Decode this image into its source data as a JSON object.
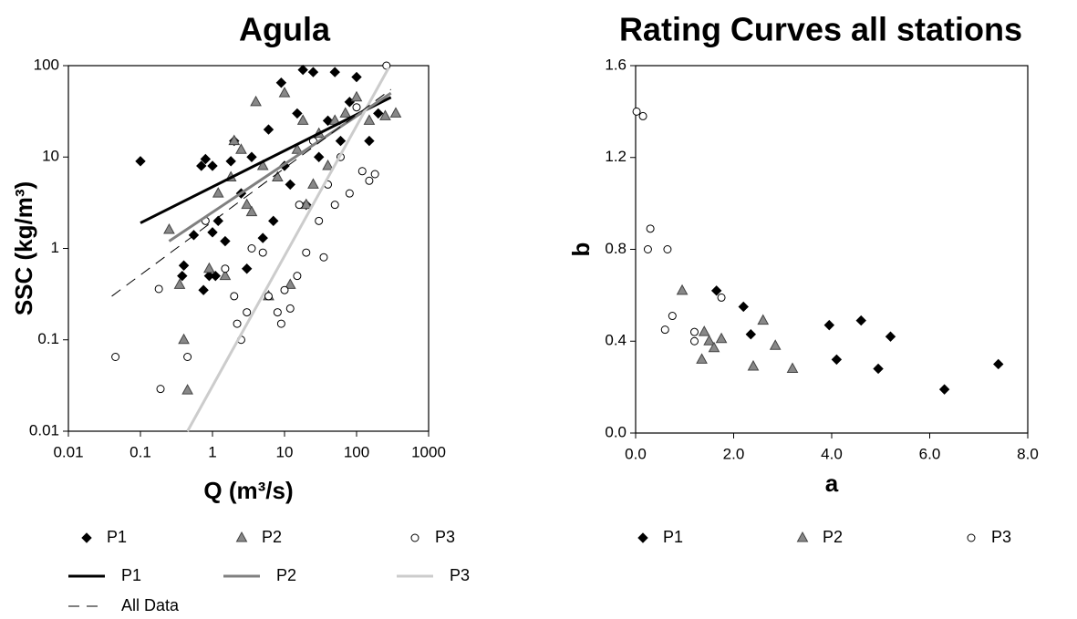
{
  "chart_data": [
    {
      "type": "scatter",
      "title": "Agula",
      "x_label": "Q (m³/s)",
      "y_label": "SSC (kg/m³)",
      "xscale": "log",
      "yscale": "log",
      "xlim": [
        0.01,
        1000
      ],
      "xticks": [
        0.01,
        0.1,
        1,
        10,
        100,
        1000
      ],
      "ylim": [
        0.01,
        100
      ],
      "yticks": [
        0.01,
        0.1,
        1,
        10,
        100
      ],
      "series": [
        {
          "name": "P1",
          "kind": "points",
          "marker": "diamond",
          "color": "#000000",
          "x": [
            0.1,
            0.38,
            0.4,
            0.55,
            0.7,
            0.75,
            0.8,
            0.9,
            1,
            1,
            1.1,
            1.2,
            1.5,
            1.8,
            2,
            2.5,
            3,
            3.5,
            5,
            6,
            7,
            9,
            10,
            12,
            15,
            18,
            20,
            25,
            30,
            40,
            50,
            60,
            80,
            100,
            150,
            200
          ],
          "values": [
            9,
            0.5,
            0.65,
            1.4,
            8,
            0.35,
            9.5,
            0.5,
            1.5,
            8,
            0.5,
            2,
            1.2,
            9,
            15,
            4,
            0.6,
            10,
            1.3,
            20,
            2,
            65,
            8,
            5,
            30,
            90,
            3,
            85,
            10,
            25,
            85,
            15,
            40,
            75,
            15,
            30
          ]
        },
        {
          "name": "P2",
          "kind": "points",
          "marker": "triangle",
          "color": "#888888",
          "x": [
            0.25,
            0.35,
            0.4,
            0.45,
            0.9,
            1.2,
            1.5,
            1.8,
            2,
            2.5,
            3,
            3.5,
            4,
            5,
            6,
            8,
            10,
            12,
            15,
            18,
            20,
            25,
            30,
            40,
            50,
            70,
            100,
            150,
            250,
            350
          ],
          "values": [
            1.6,
            0.4,
            0.1,
            0.028,
            0.6,
            4,
            0.5,
            6,
            15,
            12,
            3,
            2.5,
            40,
            8,
            0.3,
            6,
            50,
            0.4,
            12,
            25,
            3,
            5,
            18,
            8,
            25,
            30,
            45,
            25,
            28,
            30
          ]
        },
        {
          "name": "P3",
          "kind": "points",
          "marker": "circle",
          "color": "#ffffff",
          "x": [
            0.045,
            0.18,
            0.19,
            0.45,
            0.8,
            1.5,
            2,
            2.2,
            2.5,
            3,
            3.5,
            5,
            6,
            8,
            9,
            10,
            12,
            15,
            16,
            20,
            25,
            30,
            35,
            40,
            50,
            60,
            80,
            100,
            120,
            150,
            180,
            260
          ],
          "values": [
            0.065,
            0.36,
            0.029,
            0.065,
            2,
            0.6,
            0.3,
            0.15,
            0.1,
            0.2,
            1,
            0.9,
            0.3,
            0.2,
            0.15,
            0.35,
            0.22,
            0.5,
            3,
            0.9,
            15,
            2,
            0.8,
            5,
            3,
            10,
            4,
            35,
            7,
            5.5,
            6.5,
            100
          ]
        },
        {
          "name": "P1",
          "kind": "line",
          "color": "#000000",
          "width": 3,
          "x": [
            0.1,
            300
          ],
          "values": [
            1.9,
            45
          ]
        },
        {
          "name": "P2",
          "kind": "line",
          "color": "#808080",
          "width": 3,
          "x": [
            0.25,
            300
          ],
          "values": [
            1.2,
            50
          ]
        },
        {
          "name": "P3",
          "kind": "line",
          "color": "#cccccc",
          "width": 3,
          "x": [
            0.45,
            280
          ],
          "values": [
            0.01,
            95
          ]
        },
        {
          "name": "All Data",
          "kind": "line",
          "color": "#000000",
          "width": 1,
          "dashed": true,
          "x": [
            0.04,
            300
          ],
          "values": [
            0.3,
            55
          ]
        }
      ]
    },
    {
      "type": "scatter",
      "title": "Rating Curves all stations",
      "x_label": "a",
      "y_label": "b",
      "xlim": [
        0,
        8
      ],
      "xticks": [
        {
          "value": 0,
          "label": "0.0"
        },
        {
          "value": 2,
          "label": "2.0"
        },
        {
          "value": 4,
          "label": "4.0"
        },
        {
          "value": 6,
          "label": "6.0"
        },
        {
          "value": 8,
          "label": "8.0"
        }
      ],
      "ylim": [
        0,
        1.6
      ],
      "yticks": [
        {
          "value": 0,
          "label": "0.0"
        },
        {
          "value": 0.4,
          "label": "0.4"
        },
        {
          "value": 0.8,
          "label": "0.8"
        },
        {
          "value": 1.2,
          "label": "1.2"
        },
        {
          "value": 1.6,
          "label": "1.6"
        }
      ],
      "series": [
        {
          "name": "P1",
          "kind": "points",
          "marker": "diamond",
          "color": "#000000",
          "x": [
            1.65,
            2.2,
            2.35,
            3.95,
            4.1,
            4.6,
            4.95,
            5.2,
            6.3,
            7.4
          ],
          "values": [
            0.62,
            0.55,
            0.43,
            0.47,
            0.32,
            0.49,
            0.28,
            0.42,
            0.19,
            0.3
          ]
        },
        {
          "name": "P2",
          "kind": "points",
          "marker": "triangle",
          "color": "#888888",
          "x": [
            0.95,
            1.35,
            1.4,
            1.5,
            1.6,
            1.75,
            2.4,
            2.6,
            2.85,
            3.2
          ],
          "values": [
            0.62,
            0.32,
            0.44,
            0.4,
            0.37,
            0.41,
            0.29,
            0.49,
            0.38,
            0.28
          ]
        },
        {
          "name": "P3",
          "kind": "points",
          "marker": "circle",
          "color": "#ffffff",
          "x": [
            0.02,
            0.15,
            0.25,
            0.3,
            0.6,
            0.65,
            0.75,
            1.2,
            1.2,
            1.75
          ],
          "values": [
            1.4,
            1.38,
            0.8,
            0.89,
            0.45,
            0.8,
            0.51,
            0.44,
            0.4,
            0.59
          ]
        }
      ]
    }
  ]
}
